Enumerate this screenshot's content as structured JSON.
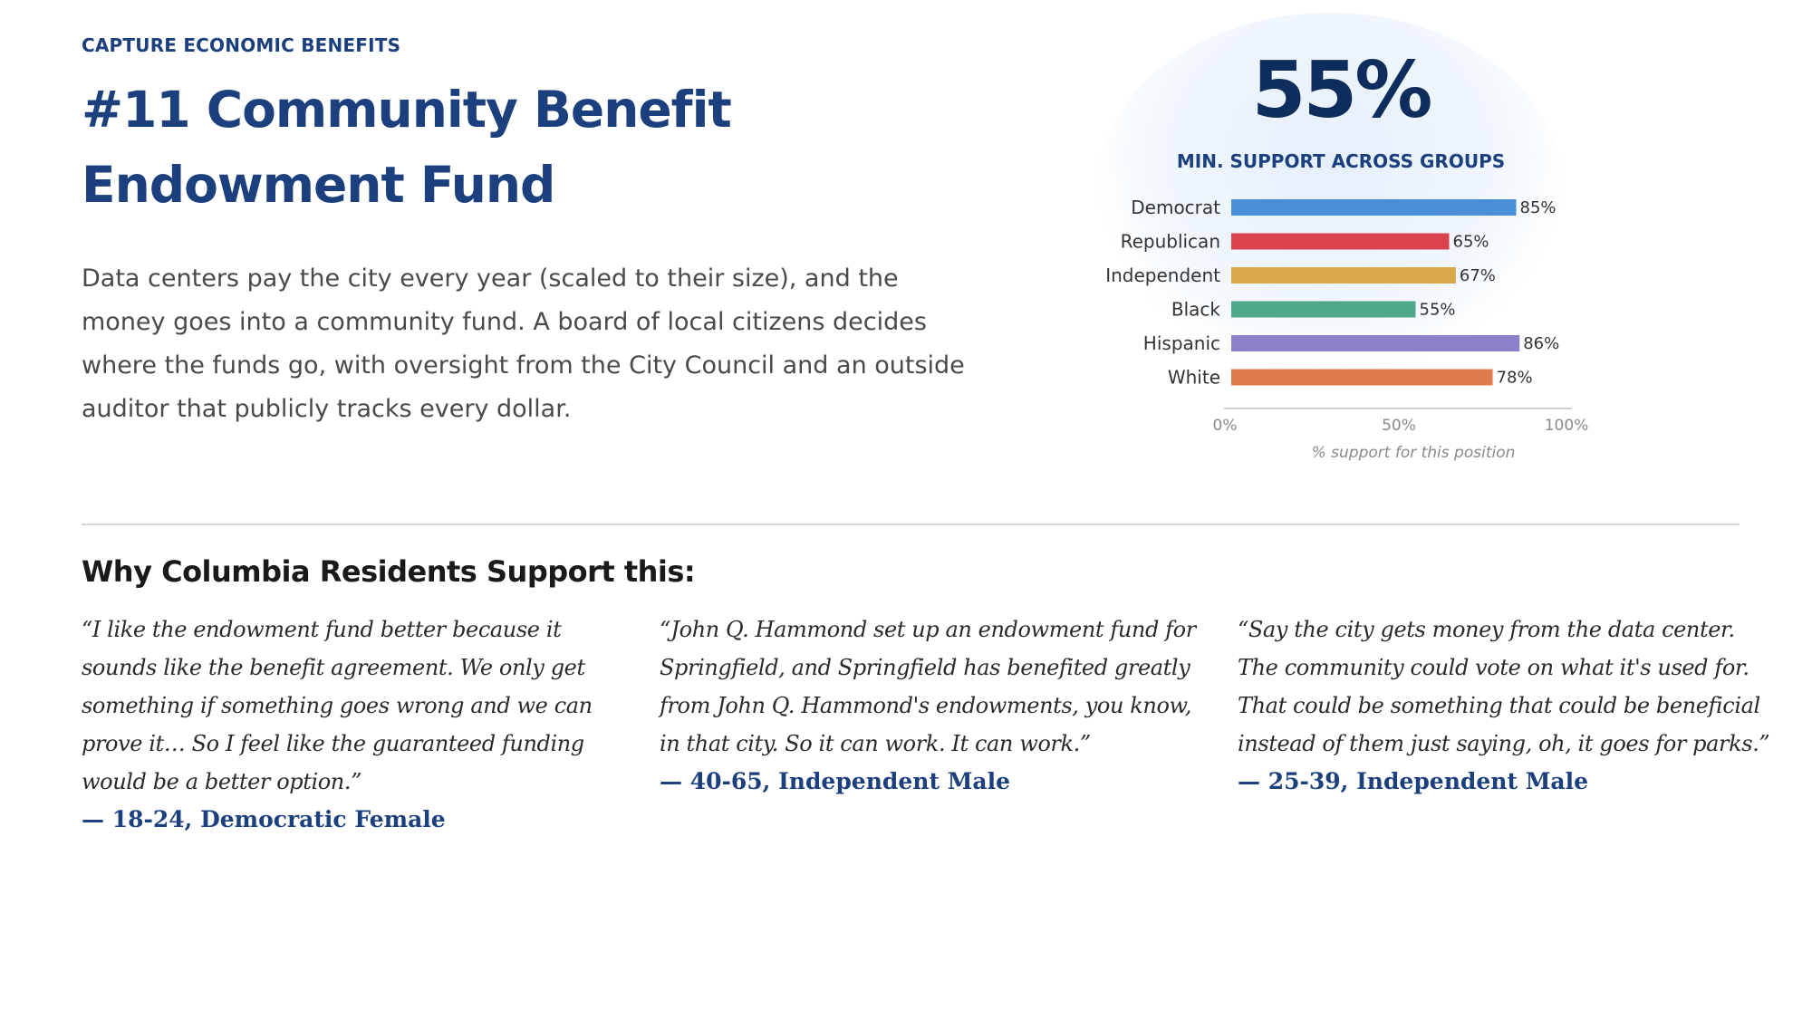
{
  "header": {
    "eyebrow": "CAPTURE ECONOMIC BENEFITS",
    "title": "#11 Community Benefit Endowment Fund",
    "description": "Data centers pay the city every year (scaled to their size), and the money goes into a community fund. A board of local citizens decides where the funds go, with oversight from the City Council and an outside auditor that publicly tracks every dollar."
  },
  "stat": {
    "value": "55%",
    "caption": "MIN. SUPPORT ACROSS GROUPS"
  },
  "chart_data": {
    "type": "bar",
    "orientation": "horizontal",
    "categories": [
      "Democrat",
      "Republican",
      "Independent",
      "Black",
      "Hispanic",
      "White"
    ],
    "values": [
      85,
      65,
      67,
      55,
      86,
      78
    ],
    "value_labels": [
      "85%",
      "65%",
      "67%",
      "55%",
      "86%",
      "78%"
    ],
    "colors": [
      "#4a8fd8",
      "#d9434e",
      "#d8a84a",
      "#4ea98a",
      "#8b80c9",
      "#dd7d4f"
    ],
    "xlim": [
      0,
      100
    ],
    "xticks": [
      0,
      50,
      100
    ],
    "xtick_labels": [
      "0%",
      "50%",
      "100%"
    ],
    "xlabel": "% support for this position",
    "ylabel": "",
    "title": "",
    "grid": false
  },
  "section": {
    "heading": "Why Columbia Residents Support this:"
  },
  "quotes": [
    {
      "text": "“I like the endowment fund better because it sounds like the benefit agreement. We only get something if something goes wrong and we can prove it… So I feel like the guaranteed funding would be a better option.”",
      "attribution": "— 18-24, Democratic Female"
    },
    {
      "text": "“John Q. Hammond set up an endowment fund for Springfield, and Springfield has benefited greatly from John Q. Hammond's endowments, you know, in that city. So it can work. It can work.”",
      "attribution": "— 40-65, Independent Male"
    },
    {
      "text": "“Say the city gets money from the data center. The community could vote on what it's used for. That could be something that could be beneficial instead of them just saying, oh, it goes for parks.”",
      "attribution": "— 25-39, Independent Male"
    }
  ]
}
